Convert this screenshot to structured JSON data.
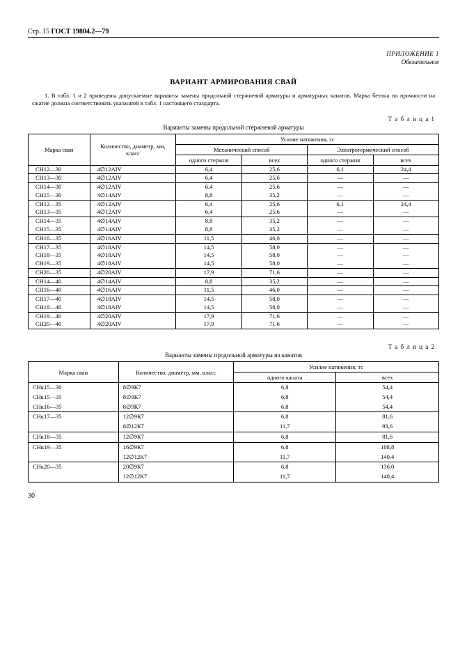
{
  "header": {
    "page_label": "Стр. 15",
    "standard": "ГОСТ 19804.2—79"
  },
  "annex": {
    "line1": "ПРИЛОЖЕНИЕ 1",
    "line2": "Обязательное"
  },
  "title": "ВАРИАНТ АРМИРОВАНИЯ СВАЙ",
  "intro": "1. В табл. 1 и 2 приведены допускаемые варианты замены продольной стержневой арматуры и арматурных канатов. Марка бетона по прочности на сжатие должна соответствовать указанной в табл. 1 настоящего стандарта.",
  "table1": {
    "label": "Т а б л и ц а 1",
    "caption": "Варианты замены продольной стержневой арматуры",
    "head": {
      "c_mark": "Марка сваи",
      "c_qty": "Количество, диаметр, мм, класс",
      "c_force": "Усилие натяжения, тс",
      "c_mech": "Механический способ",
      "c_elec": "Электротермический способ",
      "c_one": "одного стержня",
      "c_all": "всех"
    },
    "rows": [
      [
        [
          "СН12—30"
        ],
        [
          "4∅12AIV"
        ],
        [
          "6,4"
        ],
        [
          "25,6"
        ],
        [
          "6,1"
        ],
        [
          "24,4"
        ]
      ],
      [
        [
          "СН13—30"
        ],
        [
          "4∅12AIV"
        ],
        [
          "6,4"
        ],
        [
          "25,6"
        ],
        [
          "—"
        ],
        [
          "—"
        ]
      ],
      [
        [
          "СН14—30",
          "СН15—30"
        ],
        [
          "4∅12AIV",
          "4∅14AIV"
        ],
        [
          "6,4",
          "8,8"
        ],
        [
          "25,6",
          "35,2"
        ],
        [
          "—",
          "—"
        ],
        [
          "—",
          "—"
        ]
      ],
      [
        [
          "СН12—35",
          "СН13—35"
        ],
        [
          "4∅12AIV",
          "4∅12AIV"
        ],
        [
          "6,4",
          "6,4"
        ],
        [
          "25,6",
          "25,6"
        ],
        [
          "6,1",
          "—"
        ],
        [
          "24,4",
          "—"
        ]
      ],
      [
        [
          "СН14—35",
          "СН15—35"
        ],
        [
          "4∅14AIV",
          "4∅14AIV"
        ],
        [
          "8,8",
          "8,8"
        ],
        [
          "35,2",
          "35,2"
        ],
        [
          "—",
          "—"
        ],
        [
          "—",
          "—"
        ]
      ],
      [
        [
          "СН16—35"
        ],
        [
          "4∅16AIV"
        ],
        [
          "11,5"
        ],
        [
          "46,0"
        ],
        [
          "—"
        ],
        [
          "—"
        ]
      ],
      [
        [
          "СН17—35",
          "СН18—35",
          "СН19—35"
        ],
        [
          "4∅18AIV",
          "4∅18AIV",
          "4∅18AIV"
        ],
        [
          "14,5",
          "14,5",
          "14,5"
        ],
        [
          "58,0",
          "58,0",
          "58,0"
        ],
        [
          "—",
          "—",
          "—"
        ],
        [
          "—",
          "—",
          "—"
        ]
      ],
      [
        [
          "СН20—35"
        ],
        [
          "4∅20AIV"
        ],
        [
          "17,9"
        ],
        [
          "71,6"
        ],
        [
          "—"
        ],
        [
          "—"
        ]
      ],
      [
        [
          "СН14—40"
        ],
        [
          "4∅14AIV"
        ],
        [
          "8,8"
        ],
        [
          "35,2"
        ],
        [
          "—"
        ],
        [
          "—"
        ]
      ],
      [
        [
          "СН16—40"
        ],
        [
          "4∅16AIV"
        ],
        [
          "11,5"
        ],
        [
          "46,0"
        ],
        [
          "—"
        ],
        [
          "—"
        ]
      ],
      [
        [
          "СН17—40",
          "СН18—40"
        ],
        [
          "4∅18AIV",
          "4∅18AIV"
        ],
        [
          "14,5",
          "14,5"
        ],
        [
          "58,0",
          "58,0"
        ],
        [
          "—",
          "—"
        ],
        [
          "—",
          "—"
        ]
      ],
      [
        [
          "СН19—40",
          "СН20—40"
        ],
        [
          "4∅20AIV",
          "4∅20AIV"
        ],
        [
          "17,9",
          "17,9"
        ],
        [
          "71,6",
          "71,6"
        ],
        [
          "—",
          "—"
        ],
        [
          "—",
          "—"
        ]
      ]
    ]
  },
  "table2": {
    "label": "Т а б л и ц а 2",
    "caption": "Варианты замены продольной арматуры из канатов",
    "head": {
      "c_mark": "Марка сваи",
      "c_qty": "Количество, диаметр, мм, класс",
      "c_force": "Усилие натяжения, тс",
      "c_one": "одного каната",
      "c_all": "всех"
    },
    "rows": [
      [
        [
          "СНк15—30",
          "СНк15—35",
          "СНк16—35"
        ],
        [
          "8∅9К7",
          "8∅9К7",
          "8∅9К7"
        ],
        [
          "6,8",
          "6,8",
          "6,8"
        ],
        [
          "54,4",
          "54,4",
          "54,4"
        ]
      ],
      [
        [
          "СНк17—35",
          ""
        ],
        [
          "12∅9К7",
          "8∅12К7"
        ],
        [
          "6,8",
          "11,7"
        ],
        [
          "81,6",
          "93,6"
        ]
      ],
      [
        [
          "СНк18—35"
        ],
        [
          "12∅9К7"
        ],
        [
          "6,8"
        ],
        [
          "81,6"
        ]
      ],
      [
        [
          "СНк19—35",
          ""
        ],
        [
          "16∅9К7",
          "12∅12К7"
        ],
        [
          "6,8",
          "11,7"
        ],
        [
          "108,8",
          "140,4"
        ]
      ],
      [
        [
          "СНк20—35",
          ""
        ],
        [
          "20∅9К7",
          "12∅12К7"
        ],
        [
          "6,8",
          "11,7"
        ],
        [
          "136,0",
          "140,4"
        ]
      ]
    ]
  },
  "page_number": "30"
}
